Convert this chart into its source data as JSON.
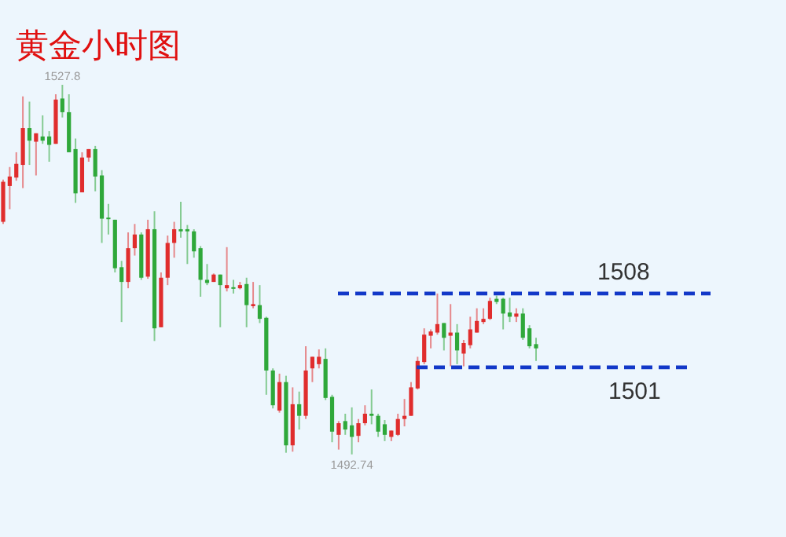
{
  "chart_data": {
    "type": "candlestick",
    "title": "黄金小时图",
    "categories": [
      null,
      null,
      null,
      null,
      null,
      null,
      null,
      null,
      null,
      null,
      null,
      null,
      null,
      null,
      null,
      null,
      null,
      null,
      null,
      null,
      null,
      null,
      null,
      null,
      null,
      null,
      null,
      null,
      null,
      null,
      null,
      null,
      null,
      null,
      null,
      null,
      null,
      null,
      null,
      null,
      null,
      null,
      null,
      null,
      null,
      null,
      null,
      null,
      null,
      null,
      null,
      null,
      null,
      null,
      null,
      null,
      null,
      null,
      null,
      null,
      null,
      null,
      null,
      null,
      null,
      null,
      null,
      null,
      null,
      null,
      null,
      null,
      null,
      null,
      null,
      null,
      null,
      null,
      null,
      null,
      null,
      null
    ],
    "ohlc": [
      [
        1514.8,
        1518.8,
        1514.6,
        1518.6
      ],
      [
        1518.2,
        1520.0,
        1516.0,
        1519.1
      ],
      [
        1519.0,
        1521.4,
        1518.7,
        1520.3
      ],
      [
        1520.2,
        1526.7,
        1518.0,
        1523.7
      ],
      [
        1523.7,
        1526.2,
        1520.2,
        1522.5
      ],
      [
        1522.4,
        1523.2,
        1519.2,
        1523.2
      ],
      [
        1522.9,
        1524.9,
        1522.2,
        1522.5
      ],
      [
        1522.9,
        1523.4,
        1520.5,
        1522.1
      ],
      [
        1522.2,
        1526.9,
        1522.2,
        1526.4
      ],
      [
        1526.5,
        1527.8,
        1524.7,
        1525.2
      ],
      [
        1525.2,
        1526.9,
        1521.4,
        1521.4
      ],
      [
        1521.7,
        1522.7,
        1516.6,
        1517.5
      ],
      [
        1517.6,
        1521.4,
        1517.6,
        1520.9
      ],
      [
        1520.9,
        1521.7,
        1520.5,
        1521.7
      ],
      [
        1521.7,
        1522.0,
        1517.7,
        1519.1
      ],
      [
        1519.2,
        1519.7,
        1512.8,
        1515.1
      ],
      [
        1515.2,
        1516.5,
        1513.6,
        1515.1
      ],
      [
        1515.0,
        1515.0,
        1510.0,
        1510.4
      ],
      [
        1510.5,
        1511.1,
        1505.3,
        1509.1
      ],
      [
        1509.1,
        1513.8,
        1508.5,
        1512.3
      ],
      [
        1512.3,
        1514.6,
        1511.6,
        1513.6
      ],
      [
        1513.6,
        1513.8,
        1509.3,
        1509.5
      ],
      [
        1509.6,
        1515.0,
        1509.4,
        1514.1
      ],
      [
        1514.1,
        1515.8,
        1503.5,
        1504.7
      ],
      [
        1504.8,
        1510.0,
        1504.8,
        1509.5
      ],
      [
        1509.5,
        1513.5,
        1508.8,
        1512.8
      ],
      [
        1512.8,
        1514.8,
        1511.4,
        1514.1
      ],
      [
        1514.1,
        1516.7,
        1513.3,
        1513.9
      ],
      [
        1514.1,
        1514.5,
        1510.8,
        1513.9
      ],
      [
        1513.9,
        1514.1,
        1511.4,
        1512.0
      ],
      [
        1512.3,
        1512.5,
        1507.7,
        1509.3
      ],
      [
        1509.3,
        1510.8,
        1508.8,
        1509.0
      ],
      [
        1509.1,
        1509.9,
        1509.1,
        1509.8
      ],
      [
        1509.8,
        1509.8,
        1504.8,
        1508.8
      ],
      [
        1508.5,
        1512.4,
        1508.2,
        1508.8
      ],
      [
        1508.6,
        1509.3,
        1508.0,
        1508.5
      ],
      [
        1508.5,
        1509.1,
        1508.4,
        1508.8
      ],
      [
        1508.9,
        1509.5,
        1504.8,
        1506.9
      ],
      [
        1506.8,
        1509.1,
        1506.6,
        1507.0
      ],
      [
        1506.9,
        1508.8,
        1505.2,
        1505.6
      ],
      [
        1505.7,
        1505.8,
        1498.4,
        1500.7
      ],
      [
        1500.7,
        1500.9,
        1497.1,
        1497.4
      ],
      [
        1496.9,
        1500.4,
        1496.7,
        1499.6
      ],
      [
        1499.6,
        1500.2,
        1492.9,
        1493.6
      ],
      [
        1493.6,
        1499.1,
        1493.0,
        1497.5
      ],
      [
        1497.5,
        1498.7,
        1495.1,
        1496.4
      ],
      [
        1496.4,
        1503.0,
        1496.1,
        1500.7
      ],
      [
        1500.9,
        1502.0,
        1499.6,
        1502.0
      ],
      [
        1501.3,
        1502.7,
        1500.9,
        1502.0
      ],
      [
        1501.8,
        1502.8,
        1497.9,
        1498.1
      ],
      [
        1498.2,
        1498.4,
        1493.9,
        1494.9
      ],
      [
        1494.6,
        1495.9,
        1493.2,
        1495.7
      ],
      [
        1495.9,
        1496.6,
        1494.6,
        1495.1
      ],
      [
        1495.5,
        1497.2,
        1492.74,
        1494.4
      ],
      [
        1494.5,
        1496.1,
        1493.9,
        1495.7
      ],
      [
        1495.7,
        1497.4,
        1495.5,
        1496.6
      ],
      [
        1496.6,
        1498.9,
        1495.6,
        1496.4
      ],
      [
        1496.4,
        1496.6,
        1494.4,
        1494.9
      ],
      [
        1495.6,
        1496.0,
        1494.0,
        1494.6
      ],
      [
        1494.4,
        1495.0,
        1494.0,
        1495.0
      ],
      [
        1494.6,
        1496.6,
        1494.5,
        1496.1
      ],
      [
        1496.1,
        1498.0,
        1495.4,
        1496.4
      ],
      [
        1496.4,
        1499.6,
        1496.4,
        1499.1
      ],
      [
        1499.0,
        1502.0,
        1498.9,
        1501.6
      ],
      [
        1501.5,
        1504.7,
        1501.3,
        1504.1
      ],
      [
        1504.0,
        1504.6,
        1502.8,
        1504.4
      ],
      [
        1504.3,
        1508.0,
        1504.1,
        1505.1
      ],
      [
        1505.2,
        1505.2,
        1502.6,
        1503.8
      ],
      [
        1504.0,
        1507.0,
        1501.1,
        1504.3
      ],
      [
        1504.3,
        1505.1,
        1501.3,
        1502.6
      ],
      [
        1502.3,
        1503.6,
        1501.1,
        1503.3
      ],
      [
        1503.1,
        1505.8,
        1502.8,
        1504.6
      ],
      [
        1504.3,
        1506.6,
        1504.3,
        1505.4
      ],
      [
        1505.3,
        1506.6,
        1505.1,
        1505.6
      ],
      [
        1505.6,
        1507.6,
        1505.5,
        1507.3
      ],
      [
        1507.5,
        1507.8,
        1507.0,
        1507.2
      ],
      [
        1507.5,
        1507.6,
        1504.6,
        1506.1
      ],
      [
        1506.2,
        1507.6,
        1505.3,
        1505.8
      ],
      [
        1505.8,
        1506.6,
        1505.3,
        1506.1
      ],
      [
        1506.1,
        1506.6,
        1503.6,
        1503.8
      ],
      [
        1504.7,
        1505.0,
        1502.8,
        1503.0
      ],
      [
        1503.2,
        1503.8,
        1501.6,
        1502.8
      ]
    ],
    "colors": [
      "#e02d2d",
      "#e02d2d",
      "#e02d2d",
      "#e02d2d",
      "#2fa83a",
      "#e02d2d",
      "#2fa83a",
      "#2fa83a",
      "#e02d2d",
      "#2fa83a",
      "#2fa83a",
      "#2fa83a",
      "#e02d2d",
      "#e02d2d",
      "#2fa83a",
      "#2fa83a",
      "#2fa83a",
      "#2fa83a",
      "#2fa83a",
      "#e02d2d",
      "#e02d2d",
      "#2fa83a",
      "#e02d2d",
      "#2fa83a",
      "#e02d2d",
      "#e02d2d",
      "#e02d2d",
      "#2fa83a",
      "#2fa83a",
      "#2fa83a",
      "#2fa83a",
      "#2fa83a",
      "#e02d2d",
      "#2fa83a",
      "#e02d2d",
      "#2fa83a",
      "#e02d2d",
      "#2fa83a",
      "#e02d2d",
      "#2fa83a",
      "#2fa83a",
      "#2fa83a",
      "#e02d2d",
      "#2fa83a",
      "#e02d2d",
      "#2fa83a",
      "#e02d2d",
      "#e02d2d",
      "#e02d2d",
      "#2fa83a",
      "#2fa83a",
      "#e02d2d",
      "#2fa83a",
      "#2fa83a",
      "#e02d2d",
      "#e02d2d",
      "#2fa83a",
      "#2fa83a",
      "#2fa83a",
      "#e02d2d",
      "#e02d2d",
      "#e02d2d",
      "#e02d2d",
      "#e02d2d",
      "#e02d2d",
      "#e02d2d",
      "#e02d2d",
      "#2fa83a",
      "#e02d2d",
      "#2fa83a",
      "#e02d2d",
      "#e02d2d",
      "#e02d2d",
      "#e02d2d",
      "#e02d2d",
      "#2fa83a",
      "#2fa83a",
      "#2fa83a",
      "#e02d2d",
      "#2fa83a",
      "#2fa83a",
      "#2fa83a"
    ],
    "ref_lines": [
      {
        "axis": "y",
        "value": 1508,
        "label": "1508",
        "color": "#1238c8",
        "line_style": "dashed"
      },
      {
        "axis": "y",
        "value": 1501,
        "label": "1501",
        "color": "#1238c8",
        "line_style": "dashed"
      }
    ],
    "annotations": [
      {
        "text": "1527.8",
        "y": 1527.8
      },
      {
        "text": "1492.74",
        "y": 1492.74
      }
    ]
  }
}
